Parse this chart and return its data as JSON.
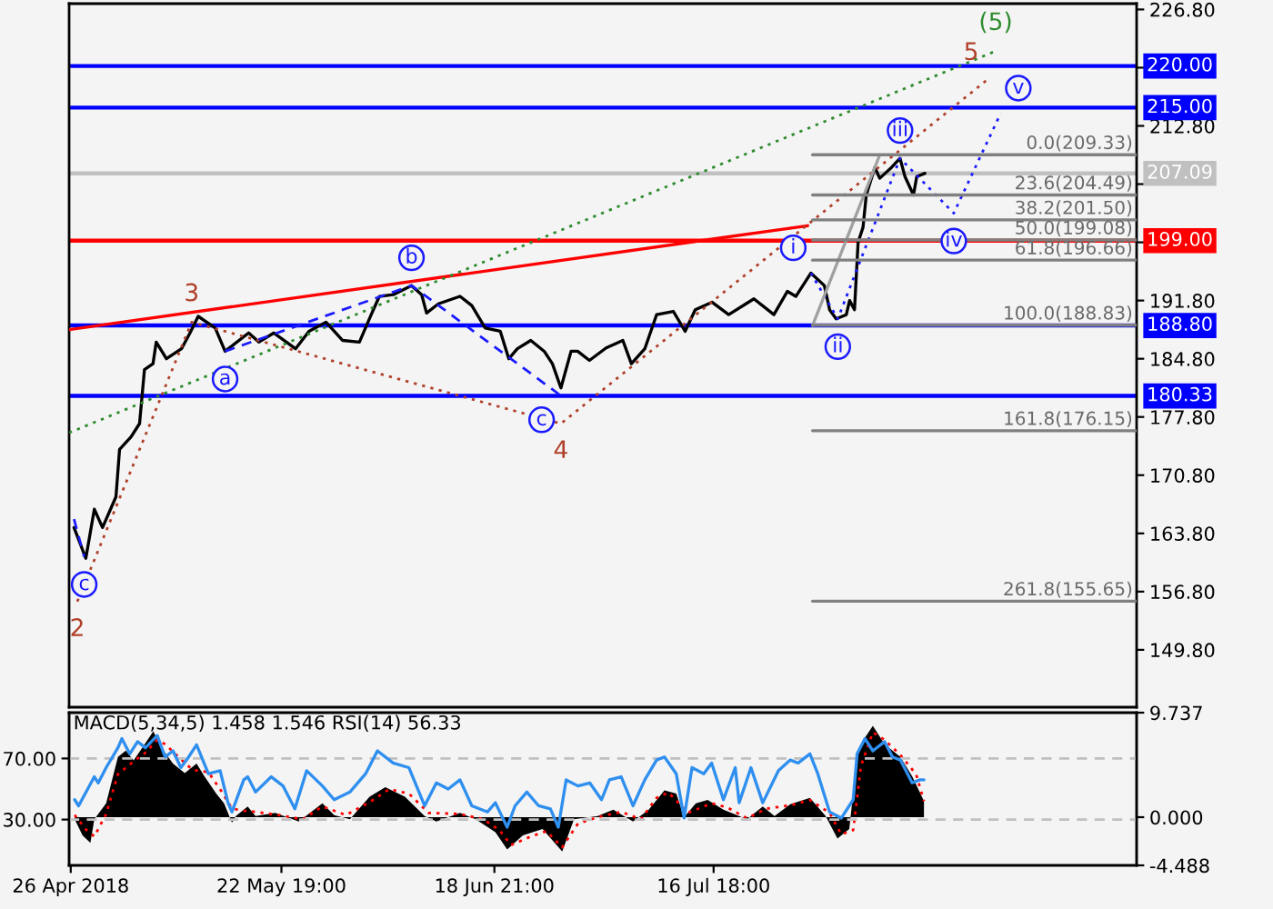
{
  "chart_data": [
    {
      "type": "line",
      "xlim": [
        "2018-04-25T19:00",
        "2018-09-08T13:00"
      ],
      "ylim": [
        142.9,
        227.5
      ],
      "yticks": [
        {
          "value": 226.8,
          "label": "226.80"
        },
        {
          "value": 219.8,
          "label": null
        },
        {
          "value": 212.8,
          "label": "212.80"
        },
        {
          "value": 205.8,
          "label": null
        },
        {
          "value": 198.8,
          "label": null
        },
        {
          "value": 191.8,
          "label": "191.80"
        },
        {
          "value": 184.8,
          "label": "184.80"
        },
        {
          "value": 177.8,
          "label": "177.80"
        },
        {
          "value": 170.8,
          "label": "170.80"
        },
        {
          "value": 163.8,
          "label": "163.80"
        },
        {
          "value": 156.8,
          "label": "156.80"
        },
        {
          "value": 149.8,
          "label": "149.80"
        }
      ],
      "tick_labels": "y",
      "ref_lines": [
        {
          "axis": "y",
          "value": 220,
          "label": "220.00",
          "color": "#0000ff"
        },
        {
          "axis": "y",
          "value": 215,
          "label": "215.00",
          "color": "#0000ff"
        },
        {
          "axis": "y",
          "value": 207.09,
          "label": "207.09",
          "color": "#c0c0c0"
        },
        {
          "axis": "y",
          "value": 199,
          "label": "199.00",
          "color": "#ff0000"
        },
        {
          "axis": "y",
          "value": 188.8,
          "label": "188.80",
          "color": "#0000ff"
        },
        {
          "axis": "y",
          "value": 180.33,
          "label": "180.33",
          "color": "#0000ff"
        }
      ],
      "annotations": [
        {
          "text": "(5)",
          "x": "2018-08-21T15:00",
          "y": 221.8
        },
        {
          "text": "2",
          "x": "2018-04-26T20:00",
          "y": 155.6
        },
        {
          "text": "3",
          "x": "2018-05-11T09:00",
          "y": 189.2
        },
        {
          "text": "4",
          "x": "2018-06-27T08:00",
          "y": 177.0
        },
        {
          "text": "5",
          "x": "2018-08-20T18:00",
          "y": 218.5
        },
        {
          "text": "c",
          "x": "2018-04-27T17:00",
          "y": 161.0
        },
        {
          "text": "a",
          "x": "2018-05-15T15:00",
          "y": 185.7
        },
        {
          "text": "b",
          "x": "2018-06-08T08:00",
          "y": 193.6
        },
        {
          "text": "c",
          "x": "2018-06-27T03:00",
          "y": 180.5
        },
        {
          "text": "i",
          "x": "2018-07-29T03:00",
          "y": 195.1
        },
        {
          "text": "ii",
          "x": "2018-08-01T13:00",
          "y": 189.6
        },
        {
          "text": "iii",
          "x": "2018-08-09T11:00",
          "y": 208.9
        },
        {
          "text": "iv",
          "x": "2018-08-16T07:00",
          "y": 202.3
        },
        {
          "text": "v",
          "x": "2018-08-22T06:00",
          "y": 214.3
        }
      ],
      "series": [
        {
          "color": "#000000",
          "x": [
            "2018-04-26T10:00",
            "2018-04-27T22:00",
            "2018-04-29T00:00",
            "2018-04-30T01:00",
            "2018-05-01T18:00",
            "2018-05-02T05:00",
            "2018-05-03T16:00",
            "2018-05-04T18:00",
            "2018-05-05T09:00",
            "2018-05-06T11:00",
            "2018-05-06T21:00",
            "2018-05-08T04:00",
            "2018-05-10T02:00",
            "2018-05-11T04:00",
            "2018-05-12T05:00",
            "2018-05-14T09:00",
            "2018-05-15T15:00",
            "2018-05-18T15:00",
            "2018-05-19T22:00",
            "2018-05-21T20:00",
            "2018-05-24T14:00",
            "2018-05-26T07:00",
            "2018-05-28T11:00",
            "2018-05-30T14:00",
            "2018-06-01T17:00",
            "2018-06-03T05:00",
            "2018-06-04T06:00",
            "2018-06-06T00:00",
            "2018-06-08T08:00",
            "2018-06-09T15:00",
            "2018-06-10T06:00",
            "2018-06-11T18:00",
            "2018-06-14T12:00",
            "2018-06-16T00:00",
            "2018-06-17T17:00",
            "2018-06-19T15:00",
            "2018-06-20T17:00",
            "2018-06-21T19:00",
            "2018-06-23T12:00",
            "2018-06-25T05:00",
            "2018-06-26T06:00",
            "2018-06-27T08:00",
            "2018-06-28T15:00",
            "2018-06-29T11:00",
            "2018-06-30T23:00",
            "2018-07-03T02:00",
            "2018-07-05T05:00",
            "2018-07-06T07:00",
            "2018-07-08T00:00",
            "2018-07-09T12:00",
            "2018-07-11T15:00",
            "2018-07-13T03:00",
            "2018-07-14T10:00",
            "2018-07-16T13:00",
            "2018-07-18T16:00",
            "2018-07-21T21:00",
            "2018-07-24T10:00",
            "2018-07-26T03:00",
            "2018-07-27T05:00",
            "2018-07-29T03:00",
            "2018-07-30T20:00",
            "2018-07-31T12:00",
            "2018-08-01T08:00",
            "2018-08-02T15:00",
            "2018-08-03T01:00",
            "2018-08-03T16:00",
            "2018-08-04T03:00",
            "2018-08-04T18:00",
            "2018-08-05T04:00",
            "2018-08-06T06:00",
            "2018-08-06T21:00",
            "2018-08-08T09:00",
            "2018-08-09T11:00",
            "2018-08-10T02:00",
            "2018-08-11T04:00",
            "2018-08-11T14:00",
            "2018-08-12T15:00"
          ],
          "values": [
            164.5,
            160.8,
            166.7,
            164.5,
            168.2,
            173.9,
            175.4,
            177.0,
            183.5,
            184.2,
            186.8,
            184.8,
            186.0,
            187.9,
            189.9,
            188.5,
            185.7,
            187.9,
            186.8,
            187.9,
            186.0,
            188.1,
            189.2,
            187.0,
            186.8,
            190.1,
            192.3,
            192.5,
            193.6,
            192.5,
            190.3,
            191.4,
            192.3,
            191.2,
            188.5,
            188.1,
            184.8,
            186.0,
            187.0,
            185.7,
            184.2,
            181.3,
            185.7,
            185.7,
            184.6,
            186.1,
            187.0,
            184.2,
            186.0,
            190.1,
            190.5,
            188.1,
            190.7,
            191.6,
            190.1,
            192.0,
            190.1,
            192.9,
            192.3,
            195.1,
            193.6,
            190.7,
            189.6,
            190.1,
            191.8,
            190.7,
            198.8,
            200.6,
            204.5,
            207.8,
            206.5,
            207.8,
            208.9,
            206.7,
            204.5,
            206.7,
            207.1
          ]
        },
        {
          "color": "#ff0000",
          "x": [
            "2018-04-25T19:00",
            "2018-07-28T17:00"
          ],
          "values": [
            188.3,
            200.8
          ]
        },
        {
          "color": "#2e8b2e",
          "line_style": "dotted",
          "x": [
            "2018-04-25T19:00",
            "2018-08-21T15:00"
          ],
          "values": [
            175.9,
            221.8
          ]
        },
        {
          "color": "#b0402a",
          "line_style": "dotted",
          "x": [
            "2018-04-26T20:00",
            "2018-05-11T09:00",
            "2018-06-27T08:00",
            "2018-08-20T18:00"
          ],
          "values": [
            155.6,
            189.2,
            177.0,
            218.5
          ]
        },
        {
          "color": "#1a1aff",
          "line_style": "dashed",
          "x": [
            "2018-04-26T10:00",
            "2018-04-27T17:00"
          ],
          "values": [
            165.5,
            161.0
          ]
        },
        {
          "color": "#1a1aff",
          "line_style": "dashed",
          "x": [
            "2018-05-15T15:00",
            "2018-06-08T08:00",
            "2018-06-27T03:00"
          ],
          "values": [
            185.7,
            193.6,
            180.5
          ]
        },
        {
          "color": "#1a1aff",
          "line_style": "dotted",
          "x": [
            "2018-07-29T03:00",
            "2018-08-01T13:00",
            "2018-08-09T11:00",
            "2018-08-16T07:00",
            "2018-08-22T06:00"
          ],
          "values": [
            195.1,
            189.6,
            208.9,
            202.3,
            214.3
          ]
        },
        {
          "color": "#a0a0a0",
          "x": [
            "2018-07-29T08:00",
            "2018-08-06T21:00"
          ],
          "values": [
            188.8,
            209.3
          ]
        },
        {
          "color": "#808080",
          "x": [
            "2018-07-29T08:00",
            "2018-09-08T13:00"
          ],
          "values": [
            209.33,
            209.33
          ],
          "value_labels": [
            null,
            "0.0(209.33)"
          ]
        },
        {
          "color": "#808080",
          "x": [
            "2018-07-29T08:00",
            "2018-09-08T13:00"
          ],
          "values": [
            204.49,
            204.49
          ],
          "value_labels": [
            null,
            "23.6(204.49)"
          ]
        },
        {
          "color": "#808080",
          "x": [
            "2018-07-29T08:00",
            "2018-09-08T13:00"
          ],
          "values": [
            201.5,
            201.5
          ],
          "value_labels": [
            null,
            "38.2(201.50)"
          ]
        },
        {
          "color": "#808080",
          "x": [
            "2018-07-29T08:00",
            "2018-09-08T13:00"
          ],
          "values": [
            199.08,
            199.08
          ],
          "value_labels": [
            null,
            "50.0(199.08)"
          ]
        },
        {
          "color": "#808080",
          "x": [
            "2018-07-29T08:00",
            "2018-09-08T13:00"
          ],
          "values": [
            196.66,
            196.66
          ],
          "value_labels": [
            null,
            "61.8(196.66)"
          ]
        },
        {
          "color": "#808080",
          "x": [
            "2018-07-29T08:00",
            "2018-09-08T13:00"
          ],
          "values": [
            188.83,
            188.83
          ],
          "value_labels": [
            null,
            "100.0(188.83)"
          ]
        },
        {
          "color": "#808080",
          "x": [
            "2018-07-29T08:00",
            "2018-09-08T13:00"
          ],
          "values": [
            176.15,
            176.15
          ],
          "value_labels": [
            null,
            "161.8(176.15)"
          ]
        },
        {
          "color": "#808080",
          "x": [
            "2018-07-29T08:00",
            "2018-09-08T13:00"
          ],
          "values": [
            155.65,
            155.65
          ],
          "value_labels": [
            null,
            "261.8(155.65)"
          ]
        }
      ]
    },
    {
      "type": "line",
      "title": "MACD(5,34,5) 1.458 1.546 RSI(14) 56.33",
      "xlim": [
        "2018-04-25T19:00",
        "2018-09-08T13:00"
      ],
      "xticks": [
        {
          "value": "2018-04-26",
          "label": "26 Apr 2018"
        },
        {
          "value": "2018-05-22T19:00",
          "label": "22 May 19:00"
        },
        {
          "value": "2018-06-18T21:00",
          "label": "18 Jun 21:00"
        },
        {
          "value": "2018-07-16T18:00",
          "label": "16 Jul 18:00"
        }
      ],
      "ylim": [
        -4.488,
        9.737
      ],
      "yticks": [
        9.737,
        {
          "value": 0,
          "label": "0.000"
        },
        -4.488
      ],
      "y2lim": [
        0,
        100
      ],
      "y2ticks": [
        {
          "value": 70,
          "label": "70.00"
        },
        {
          "value": 30,
          "label": "30.00"
        }
      ],
      "ref_lines": [
        {
          "axis": "y2",
          "value": 70,
          "color": "#c0c0c0",
          "line_style": "dashed"
        },
        {
          "axis": "y2",
          "value": 30,
          "color": "#c0c0c0",
          "line_style": "dashed"
        }
      ],
      "series": [
        {
          "type": "area",
          "color": "#000000",
          "x": [
            "2018-04-26T12:00",
            "2018-04-27T12:00",
            "2018-04-28T12:00",
            "2018-04-29T00:00",
            "2018-04-30T12:00",
            "2018-05-02T00:00",
            "2018-05-03T00:00",
            "2018-05-04T00:00",
            "2018-05-05T12:00",
            "2018-05-06T12:00",
            "2018-05-07T12:00",
            "2018-05-09T00:00",
            "2018-05-10T12:00",
            "2018-05-12T00:00",
            "2018-05-13T00:00",
            "2018-05-14T12:00",
            "2018-05-15T12:00",
            "2018-05-16T12:00",
            "2018-05-17T00:00",
            "2018-05-18T12:00",
            "2018-05-19T12:00",
            "2018-05-22T00:00",
            "2018-05-25T00:00",
            "2018-05-28T00:00",
            "2018-05-29T12:00",
            "2018-05-31T12:00",
            "2018-06-03T00:00",
            "2018-06-05T00:00",
            "2018-06-07T12:00",
            "2018-06-10T00:00",
            "2018-06-11T12:00",
            "2018-06-14T12:00",
            "2018-06-16T12:00",
            "2018-06-19T00:00",
            "2018-06-20T12:00",
            "2018-06-22T12:00",
            "2018-06-25T00:00",
            "2018-06-27T12:00",
            "2018-06-29T00:00",
            "2018-07-02T00:00",
            "2018-07-04T00:00",
            "2018-07-06T12:00",
            "2018-07-08T12:00",
            "2018-07-10T12:00",
            "2018-07-12T00:00",
            "2018-07-13T00:00",
            "2018-07-14T12:00",
            "2018-07-16T00:00",
            "2018-07-18T00:00",
            "2018-07-21T00:00",
            "2018-07-23T00:00",
            "2018-07-24T12:00",
            "2018-07-26T12:00",
            "2018-07-29T00:00",
            "2018-07-31T00:00",
            "2018-08-01T12:00",
            "2018-08-03T00:00",
            "2018-08-04T00:00",
            "2018-08-05T00:00",
            "2018-08-06T00:00",
            "2018-08-07T12:00",
            "2018-08-09T12:00",
            "2018-08-11T00:00",
            "2018-08-12T12:00"
          ],
          "values": [
            -0.2,
            -1.7,
            -2.4,
            -0.2,
            1.3,
            5.6,
            6.2,
            5.3,
            6.9,
            8.0,
            6.5,
            5.0,
            4.1,
            5.0,
            3.8,
            2.2,
            1.3,
            -0.5,
            0.1,
            1.0,
            0.1,
            0.4,
            -0.4,
            1.3,
            0.2,
            -0.2,
            1.9,
            2.8,
            1.9,
            0.1,
            -0.4,
            0.4,
            -0.2,
            -1.4,
            -3.0,
            -1.7,
            -1.1,
            -3.2,
            -0.2,
            0.1,
            0.7,
            -0.4,
            0.7,
            2.5,
            2.2,
            0,
            1.3,
            1.6,
            0.7,
            -0.2,
            1.0,
            0.1,
            1.2,
            1.8,
            0.1,
            -2.0,
            -1.1,
            5.6,
            7.4,
            8.5,
            6.8,
            5.6,
            3.8,
            1.5
          ]
        },
        {
          "type": "line",
          "color": "#ff0000",
          "line_style": "dotted",
          "x": [
            "2018-04-26T12:00",
            "2018-04-28T00:00",
            "2018-04-29T00:00",
            "2018-04-30T12:00",
            "2018-05-02T00:00",
            "2018-05-04T00:00",
            "2018-05-05T12:00",
            "2018-05-07T00:00",
            "2018-05-08T00:00",
            "2018-05-10T00:00",
            "2018-05-11T12:00",
            "2018-05-13T12:00",
            "2018-05-15T00:00",
            "2018-05-16T12:00",
            "2018-05-18T00:00",
            "2018-05-19T12:00",
            "2018-05-22T12:00",
            "2018-05-25T12:00",
            "2018-05-28T00:00",
            "2018-05-31T00:00",
            "2018-06-03T00:00",
            "2018-06-05T12:00",
            "2018-06-08T00:00",
            "2018-06-10T12:00",
            "2018-06-14T12:00",
            "2018-06-17T12:00",
            "2018-06-19T12:00",
            "2018-06-21T00:00",
            "2018-06-23T12:00",
            "2018-06-25T12:00",
            "2018-06-27T12:00",
            "2018-06-29T12:00",
            "2018-07-02T00:00",
            "2018-07-05T00:00",
            "2018-07-07T12:00",
            "2018-07-09T12:00",
            "2018-07-11T00:00",
            "2018-07-13T12:00",
            "2018-07-16T12:00",
            "2018-07-18T12:00",
            "2018-07-21T00:00",
            "2018-07-23T12:00",
            "2018-07-26T12:00",
            "2018-07-29T00:00",
            "2018-07-31T12:00",
            "2018-08-02T00:00",
            "2018-08-03T12:00",
            "2018-08-04T12:00",
            "2018-08-06T00:00",
            "2018-08-07T12:00",
            "2018-08-09T12:00",
            "2018-08-11T12:00",
            "2018-08-12T12:00"
          ],
          "values": [
            0.2,
            -1.2,
            -1.8,
            0.3,
            4.0,
            5.2,
            6.0,
            7.2,
            6.8,
            5.4,
            4.4,
            4.2,
            2.6,
            0.8,
            0.6,
            0.5,
            0.2,
            -0.2,
            1.0,
            0.2,
            1.4,
            2.6,
            2.2,
            0.4,
            0.3,
            -0.2,
            -1.2,
            -2.6,
            -1.8,
            -1.3,
            -2.8,
            -0.6,
            0,
            0.5,
            -0.2,
            1.8,
            2.3,
            0.4,
            1.3,
            0.9,
            -0.1,
            0.8,
            1.1,
            1.6,
            0.4,
            -1.6,
            -1.2,
            4.8,
            7.9,
            7.2,
            5.8,
            4.0,
            1.5
          ]
        },
        {
          "type": "line",
          "axis": "y2",
          "color": "#2f8fef",
          "x": [
            "2018-04-26T12:00",
            "2018-04-27T00:00",
            "2018-04-29T00:00",
            "2018-04-29T12:00",
            "2018-04-30T12:00",
            "2018-05-02T00:00",
            "2018-05-02T12:00",
            "2018-05-03T12:00",
            "2018-05-04T12:00",
            "2018-05-05T12:00",
            "2018-05-07T00:00",
            "2018-05-08T00:00",
            "2018-05-09T00:00",
            "2018-05-10T00:00",
            "2018-05-11T00:00",
            "2018-05-12T00:00",
            "2018-05-13T12:00",
            "2018-05-15T00:00",
            "2018-05-16T00:00",
            "2018-05-16T12:00",
            "2018-05-18T00:00",
            "2018-05-18T12:00",
            "2018-05-19T12:00",
            "2018-05-21T12:00",
            "2018-05-23T00:00",
            "2018-05-24T12:00",
            "2018-05-26T00:00",
            "2018-05-28T00:00",
            "2018-05-29T12:00",
            "2018-05-31T12:00",
            "2018-06-02T12:00",
            "2018-06-04T00:00",
            "2018-06-06T00:00",
            "2018-06-08T00:00",
            "2018-06-10T00:00",
            "2018-06-11T12:00",
            "2018-06-13T00:00",
            "2018-06-14T12:00",
            "2018-06-16T00:00",
            "2018-06-18T00:00",
            "2018-06-19T00:00",
            "2018-06-20T12:00",
            "2018-06-21T12:00",
            "2018-06-23T00:00",
            "2018-06-24T12:00",
            "2018-06-26T00:00",
            "2018-06-27T00:00",
            "2018-06-28T00:00",
            "2018-06-29T12:00",
            "2018-07-01T00:00",
            "2018-07-02T12:00",
            "2018-07-03T12:00",
            "2018-07-05T00:00",
            "2018-07-06T12:00",
            "2018-07-08T00:00",
            "2018-07-09T12:00",
            "2018-07-10T12:00",
            "2018-07-12T00:00",
            "2018-07-13T00:00",
            "2018-07-14T00:00",
            "2018-07-15T12:00",
            "2018-07-16T12:00",
            "2018-07-18T00:00",
            "2018-07-19T12:00",
            "2018-07-20T00:00",
            "2018-07-21T12:00",
            "2018-07-23T00:00",
            "2018-07-25T00:00",
            "2018-07-26T12:00",
            "2018-07-27T12:00",
            "2018-07-29T00:00",
            "2018-07-30T00:00",
            "2018-07-31T12:00",
            "2018-08-02T00:00",
            "2018-08-03T12:00",
            "2018-08-04T00:00",
            "2018-08-05T00:00",
            "2018-08-06T00:00",
            "2018-08-07T12:00",
            "2018-08-08T12:00",
            "2018-08-09T12:00",
            "2018-08-11T00:00",
            "2018-08-12T00:00",
            "2018-08-12T12:00"
          ],
          "values": [
            43,
            39,
            58,
            54,
            64,
            77,
            83,
            73,
            81,
            77,
            85,
            71,
            75,
            64,
            71,
            79,
            60,
            62,
            41,
            35,
            56,
            58,
            48,
            58,
            52,
            37,
            62,
            52,
            43,
            48,
            60,
            75,
            67,
            64,
            39,
            54,
            50,
            56,
            39,
            35,
            41,
            25,
            39,
            48,
            39,
            37,
            25,
            56,
            52,
            54,
            43,
            56,
            58,
            39,
            56,
            69,
            71,
            60,
            31,
            64,
            60,
            67,
            43,
            64,
            41,
            64,
            41,
            62,
            69,
            67,
            73,
            60,
            35,
            31,
            43,
            73,
            83,
            75,
            81,
            71,
            69,
            54,
            56,
            56
          ]
        }
      ]
    }
  ]
}
